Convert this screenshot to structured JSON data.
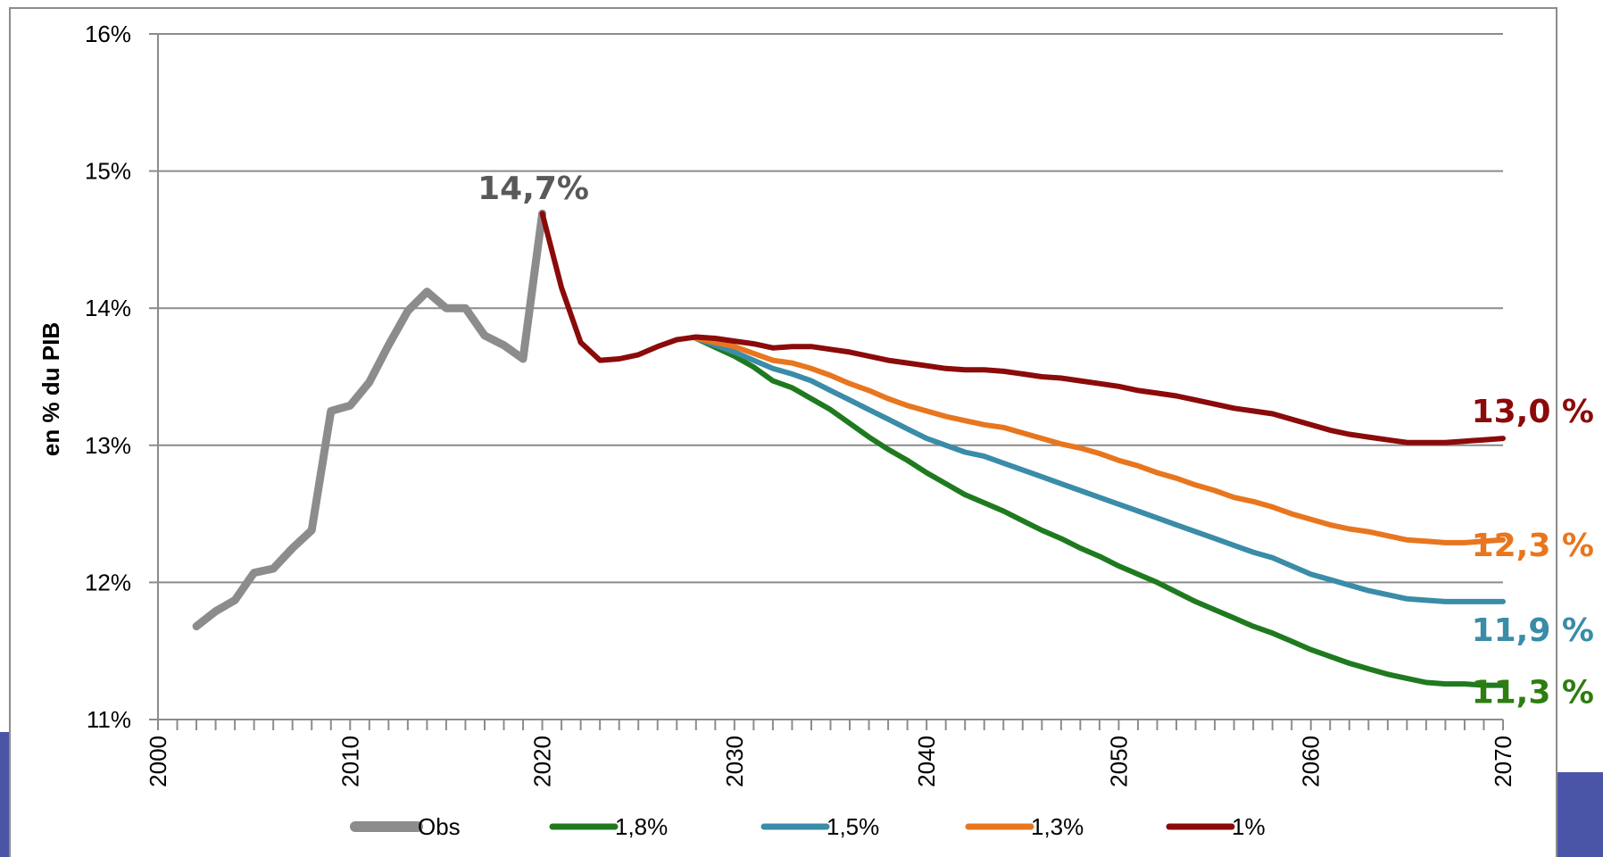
{
  "chart_data": {
    "type": "line",
    "title": "",
    "xlabel": "",
    "ylabel": "en % du PIB",
    "xlim": [
      2000,
      2070
    ],
    "ylim": [
      11,
      16
    ],
    "yticks": [
      "11%",
      "12%",
      "13%",
      "14%",
      "15%",
      "16%"
    ],
    "xticks": [
      "2000",
      "2010",
      "2020",
      "2030",
      "2040",
      "2050",
      "2060",
      "2070"
    ],
    "grid": true,
    "legend_position": "bottom",
    "series": [
      {
        "name": "Obs",
        "color": "#8c8c8c",
        "x": [
          2002,
          2003,
          2004,
          2005,
          2006,
          2007,
          2008,
          2009,
          2010,
          2011,
          2012,
          2013,
          2014,
          2015,
          2016,
          2017,
          2018,
          2019,
          2020
        ],
        "values": [
          11.68,
          11.79,
          11.87,
          12.07,
          12.1,
          12.25,
          12.38,
          13.25,
          13.29,
          13.46,
          13.73,
          13.98,
          14.12,
          14.0,
          14.0,
          13.8,
          13.73,
          13.63,
          14.69
        ]
      },
      {
        "name": "1,8%",
        "color": "#1f7a1f",
        "x": [
          2028,
          2030,
          2031,
          2032,
          2033,
          2034,
          2035,
          2036,
          2037,
          2038,
          2039,
          2040,
          2041,
          2042,
          2043,
          2044,
          2045,
          2046,
          2047,
          2048,
          2049,
          2050,
          2051,
          2052,
          2053,
          2054,
          2055,
          2056,
          2057,
          2058,
          2059,
          2060,
          2061,
          2062,
          2063,
          2064,
          2065,
          2066,
          2067,
          2068,
          2069,
          2070
        ],
        "values": [
          13.78,
          13.65,
          13.57,
          13.47,
          13.42,
          13.34,
          13.26,
          13.16,
          13.06,
          12.97,
          12.89,
          12.8,
          12.72,
          12.64,
          12.58,
          12.52,
          12.45,
          12.38,
          12.32,
          12.25,
          12.19,
          12.12,
          12.06,
          12.0,
          11.93,
          11.86,
          11.8,
          11.74,
          11.68,
          11.63,
          11.57,
          11.51,
          11.46,
          11.41,
          11.37,
          11.33,
          11.3,
          11.27,
          11.26,
          11.26,
          11.25,
          11.25
        ]
      },
      {
        "name": "1,5%",
        "color": "#3a8ca8",
        "x": [
          2028,
          2030,
          2031,
          2032,
          2033,
          2034,
          2035,
          2036,
          2037,
          2038,
          2039,
          2040,
          2041,
          2042,
          2043,
          2044,
          2045,
          2046,
          2047,
          2048,
          2049,
          2050,
          2051,
          2052,
          2053,
          2054,
          2055,
          2056,
          2057,
          2058,
          2059,
          2060,
          2061,
          2062,
          2063,
          2064,
          2065,
          2066,
          2067,
          2068,
          2069,
          2070
        ],
        "values": [
          13.78,
          13.68,
          13.62,
          13.56,
          13.52,
          13.47,
          13.4,
          13.33,
          13.26,
          13.19,
          13.12,
          13.05,
          13.0,
          12.95,
          12.92,
          12.87,
          12.82,
          12.77,
          12.72,
          12.67,
          12.62,
          12.57,
          12.52,
          12.47,
          12.42,
          12.37,
          12.32,
          12.27,
          12.22,
          12.18,
          12.12,
          12.06,
          12.02,
          11.98,
          11.94,
          11.91,
          11.88,
          11.87,
          11.86,
          11.86,
          11.86,
          11.86
        ]
      },
      {
        "name": "1,3%",
        "color": "#e8761e",
        "x": [
          2028,
          2030,
          2031,
          2032,
          2033,
          2034,
          2035,
          2036,
          2037,
          2038,
          2039,
          2040,
          2041,
          2042,
          2043,
          2044,
          2045,
          2046,
          2047,
          2048,
          2049,
          2050,
          2051,
          2052,
          2053,
          2054,
          2055,
          2056,
          2057,
          2058,
          2059,
          2060,
          2061,
          2062,
          2063,
          2064,
          2065,
          2066,
          2067,
          2068,
          2069,
          2070
        ],
        "values": [
          13.78,
          13.72,
          13.67,
          13.62,
          13.6,
          13.56,
          13.51,
          13.45,
          13.4,
          13.34,
          13.29,
          13.25,
          13.21,
          13.18,
          13.15,
          13.13,
          13.09,
          13.05,
          13.01,
          12.98,
          12.94,
          12.89,
          12.85,
          12.8,
          12.76,
          12.71,
          12.67,
          12.62,
          12.59,
          12.55,
          12.5,
          12.46,
          12.42,
          12.39,
          12.37,
          12.34,
          12.31,
          12.3,
          12.29,
          12.29,
          12.3,
          12.31
        ]
      },
      {
        "name": "1%",
        "color": "#8b0a0a",
        "x": [
          2020,
          2021,
          2022,
          2023,
          2024,
          2025,
          2026,
          2027,
          2028,
          2029,
          2030,
          2031,
          2032,
          2033,
          2034,
          2035,
          2036,
          2037,
          2038,
          2039,
          2040,
          2041,
          2042,
          2043,
          2044,
          2045,
          2046,
          2047,
          2048,
          2049,
          2050,
          2051,
          2052,
          2053,
          2054,
          2055,
          2056,
          2057,
          2058,
          2059,
          2060,
          2061,
          2062,
          2063,
          2064,
          2065,
          2066,
          2067,
          2068,
          2069,
          2070
        ],
        "values": [
          14.69,
          14.15,
          13.75,
          13.62,
          13.63,
          13.66,
          13.72,
          13.77,
          13.79,
          13.78,
          13.76,
          13.74,
          13.71,
          13.72,
          13.72,
          13.7,
          13.68,
          13.65,
          13.62,
          13.6,
          13.58,
          13.56,
          13.55,
          13.55,
          13.54,
          13.52,
          13.5,
          13.49,
          13.47,
          13.45,
          13.43,
          13.4,
          13.38,
          13.36,
          13.33,
          13.3,
          13.27,
          13.25,
          13.23,
          13.19,
          13.15,
          13.11,
          13.08,
          13.06,
          13.04,
          13.02,
          13.02,
          13.02,
          13.03,
          13.04,
          13.05
        ]
      }
    ],
    "annotations": [
      {
        "text": "14,7%",
        "color": "#595959"
      },
      {
        "text": "13,0 %",
        "color": "#8b0a0a"
      },
      {
        "text": "12,3 %",
        "color": "#e8761e"
      },
      {
        "text": "11,9 %",
        "color": "#3a8ca8"
      },
      {
        "text": "11,3 %",
        "color": "#2e7d10"
      }
    ]
  }
}
